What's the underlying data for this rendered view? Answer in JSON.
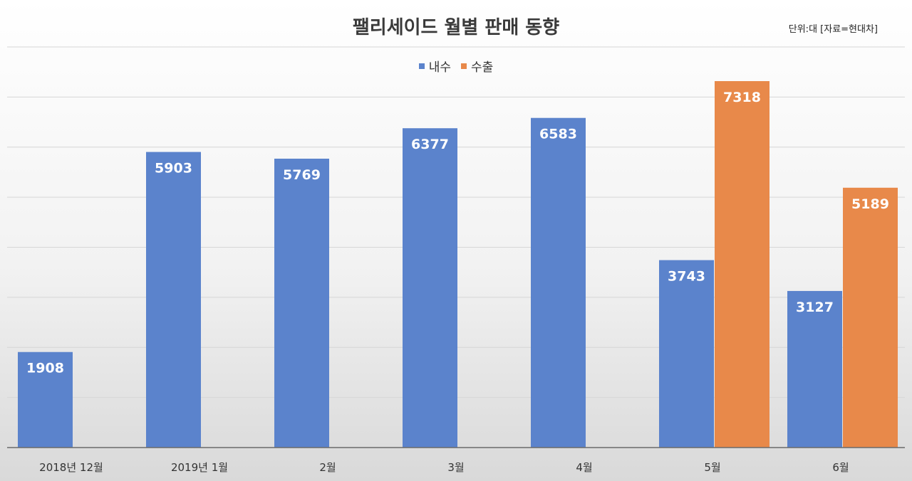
{
  "colors": {
    "domestic": "#5b83cc",
    "export": "#e8894a"
  },
  "chart_data": {
    "type": "bar",
    "title": "팰리세이드 월별 판매 동향",
    "unit_note": "단위:대 [자료=현대차]",
    "categories": [
      "2018년 12월",
      "2019년 1월",
      "2월",
      "3월",
      "4월",
      "5월",
      "6월"
    ],
    "series": [
      {
        "name": "내수",
        "values": [
          1908,
          5903,
          5769,
          6377,
          6583,
          3743,
          3127
        ]
      },
      {
        "name": "수출",
        "values": [
          null,
          null,
          null,
          null,
          null,
          7318,
          5189
        ]
      }
    ],
    "ylim": [
      0,
      8000
    ],
    "grid": true,
    "legend_position": "top-center"
  }
}
